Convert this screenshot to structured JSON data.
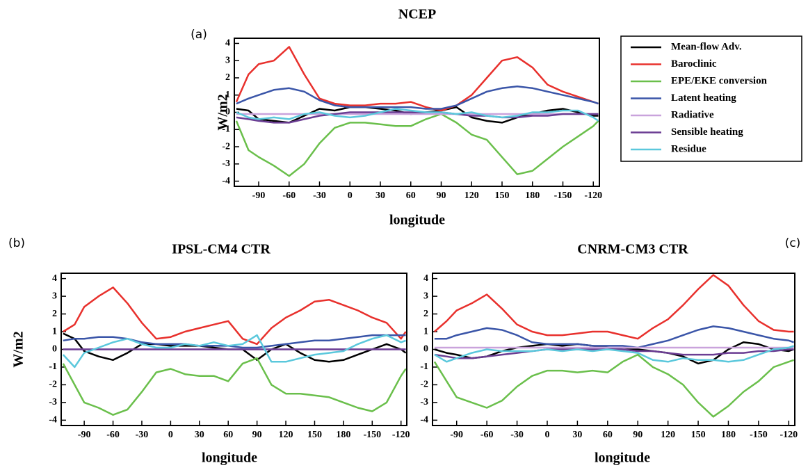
{
  "chart_data": [
    {
      "type": "line",
      "label": "(a)",
      "title": "NCEP",
      "xlabel": "longitude",
      "ylabel": "W/m2",
      "legend": "right",
      "x": [
        -112,
        -100,
        -90,
        -75,
        -60,
        -45,
        -30,
        -15,
        0,
        15,
        30,
        45,
        60,
        75,
        90,
        105,
        120,
        135,
        150,
        165,
        180,
        195,
        210,
        225,
        240,
        245
      ],
      "xlim": [
        -114,
        246
      ],
      "ylim": [
        -4.3,
        4.3
      ],
      "xticks": [
        -90,
        -60,
        -30,
        0,
        30,
        60,
        90,
        120,
        150,
        180,
        {
          "value": 210,
          "label": "-150"
        },
        {
          "value": 240,
          "label": "-120"
        }
      ],
      "yticks": [
        -4,
        -3,
        -2,
        -1,
        0,
        1,
        2,
        3,
        4
      ],
      "series": [
        {
          "name": "Mean-flow Adv.",
          "color": "#000000",
          "values": [
            0.2,
            0.1,
            -0.4,
            -0.5,
            -0.6,
            -0.2,
            0.2,
            0.1,
            0.3,
            0.3,
            0.2,
            0.1,
            -0.1,
            0.0,
            0.1,
            0.3,
            -0.3,
            -0.5,
            -0.6,
            -0.3,
            -0.1,
            0.1,
            0.2,
            0.0,
            -0.2,
            -0.2
          ]
        },
        {
          "name": "Baroclinic",
          "color": "#e8302c",
          "values": [
            0.6,
            2.2,
            2.8,
            3.0,
            3.8,
            2.2,
            0.8,
            0.5,
            0.4,
            0.4,
            0.5,
            0.5,
            0.6,
            0.3,
            0.1,
            0.4,
            1.0,
            2.0,
            3.0,
            3.2,
            2.6,
            1.6,
            1.2,
            0.9,
            0.6,
            0.5
          ]
        },
        {
          "name": "EPE/EKE conversion",
          "color": "#6abf4b",
          "values": [
            -0.5,
            -2.2,
            -2.6,
            -3.1,
            -3.7,
            -3.0,
            -1.8,
            -0.9,
            -0.6,
            -0.6,
            -0.7,
            -0.8,
            -0.8,
            -0.4,
            -0.1,
            -0.6,
            -1.3,
            -1.6,
            -2.6,
            -3.6,
            -3.4,
            -2.7,
            -2.0,
            -1.4,
            -0.8,
            -0.5
          ]
        },
        {
          "name": "Latent heating",
          "color": "#3a55a8",
          "values": [
            0.5,
            0.8,
            1.0,
            1.3,
            1.4,
            1.2,
            0.7,
            0.4,
            0.3,
            0.3,
            0.3,
            0.3,
            0.3,
            0.2,
            0.2,
            0.4,
            0.8,
            1.2,
            1.4,
            1.5,
            1.4,
            1.2,
            1.0,
            0.8,
            0.6,
            0.5
          ]
        },
        {
          "name": "Radiative",
          "color": "#c9a3dc",
          "values": [
            -0.1,
            -0.1,
            -0.1,
            -0.1,
            -0.1,
            -0.1,
            -0.1,
            -0.1,
            -0.1,
            -0.1,
            -0.1,
            -0.1,
            -0.1,
            -0.1,
            -0.1,
            -0.1,
            -0.1,
            -0.1,
            -0.1,
            -0.1,
            -0.1,
            -0.1,
            -0.1,
            -0.1,
            -0.1,
            -0.1
          ]
        },
        {
          "name": "Sensible heating",
          "color": "#6b3d93",
          "values": [
            -0.3,
            -0.4,
            -0.5,
            -0.6,
            -0.6,
            -0.4,
            -0.2,
            -0.1,
            0.0,
            0.0,
            0.0,
            0.0,
            0.0,
            0.0,
            0.0,
            -0.1,
            -0.2,
            -0.2,
            -0.3,
            -0.3,
            -0.2,
            -0.2,
            -0.1,
            -0.1,
            -0.1,
            -0.1
          ]
        },
        {
          "name": "Residue",
          "color": "#5bc8dc",
          "values": [
            0.0,
            -0.3,
            -0.4,
            -0.3,
            -0.4,
            -0.1,
            0.0,
            -0.2,
            -0.3,
            -0.2,
            0.0,
            0.2,
            0.1,
            0.0,
            0.0,
            -0.1,
            0.0,
            -0.2,
            -0.3,
            -0.2,
            0.0,
            0.0,
            0.1,
            0.1,
            -0.3,
            -0.5
          ]
        }
      ]
    },
    {
      "type": "line",
      "label": "(b)",
      "title": "IPSL-CM4    CTR",
      "xlabel": "longitude",
      "ylabel": "W/m2",
      "legend": "none",
      "x": [
        -112,
        -100,
        -90,
        -75,
        -60,
        -45,
        -30,
        -15,
        0,
        15,
        30,
        45,
        60,
        75,
        90,
        105,
        120,
        135,
        150,
        165,
        180,
        195,
        210,
        225,
        240,
        245
      ],
      "xlim": [
        -114,
        246
      ],
      "ylim": [
        -4.3,
        4.3
      ],
      "xticks": [
        -90,
        -60,
        -30,
        0,
        30,
        60,
        90,
        120,
        150,
        180,
        {
          "value": 210,
          "label": "-150"
        },
        {
          "value": 240,
          "label": "-120"
        }
      ],
      "yticks": [
        -4,
        -3,
        -2,
        -1,
        0,
        1,
        2,
        3,
        4
      ],
      "series": [
        {
          "color": "#000000",
          "values": [
            0.9,
            0.6,
            -0.1,
            -0.4,
            -0.6,
            -0.2,
            0.3,
            0.3,
            0.2,
            0.2,
            0.2,
            0.1,
            0.0,
            0.0,
            -0.6,
            0.0,
            0.3,
            -0.2,
            -0.6,
            -0.7,
            -0.6,
            -0.3,
            0.0,
            0.3,
            0.0,
            -0.2
          ]
        },
        {
          "color": "#e8302c",
          "values": [
            1.0,
            1.4,
            2.4,
            3.0,
            3.5,
            2.6,
            1.5,
            0.6,
            0.7,
            1.0,
            1.2,
            1.4,
            1.6,
            0.6,
            0.3,
            1.2,
            1.8,
            2.2,
            2.7,
            2.8,
            2.5,
            2.2,
            1.8,
            1.5,
            0.6,
            1.0
          ]
        },
        {
          "color": "#6abf4b",
          "values": [
            -0.8,
            -2.0,
            -3.0,
            -3.3,
            -3.7,
            -3.4,
            -2.4,
            -1.3,
            -1.1,
            -1.4,
            -1.5,
            -1.5,
            -1.8,
            -0.8,
            -0.5,
            -2.0,
            -2.5,
            -2.5,
            -2.6,
            -2.7,
            -3.0,
            -3.3,
            -3.5,
            -3.0,
            -1.5,
            -1.1
          ]
        },
        {
          "color": "#3a55a8",
          "values": [
            0.5,
            0.6,
            0.6,
            0.7,
            0.7,
            0.6,
            0.4,
            0.3,
            0.3,
            0.3,
            0.2,
            0.2,
            0.2,
            0.1,
            0.1,
            0.2,
            0.3,
            0.4,
            0.5,
            0.5,
            0.6,
            0.7,
            0.8,
            0.8,
            0.8,
            0.8
          ]
        },
        {
          "color": "#c9a3dc",
          "values": [
            0.0,
            0.0,
            0.0,
            0.0,
            0.0,
            0.0,
            0.0,
            0.0,
            0.0,
            0.0,
            0.0,
            0.0,
            0.0,
            0.0,
            0.0,
            0.0,
            0.0,
            0.0,
            0.0,
            0.0,
            0.0,
            0.0,
            0.0,
            0.0,
            0.0,
            0.0
          ]
        },
        {
          "color": "#6b3d93",
          "values": [
            0.0,
            0.0,
            0.0,
            0.0,
            0.0,
            0.0,
            0.0,
            0.0,
            0.0,
            0.0,
            0.0,
            0.0,
            0.0,
            0.0,
            0.0,
            0.0,
            0.0,
            0.0,
            0.0,
            0.0,
            0.0,
            0.0,
            0.0,
            0.0,
            0.0,
            0.0
          ]
        },
        {
          "color": "#5bc8dc",
          "values": [
            -0.3,
            -1.0,
            -0.2,
            0.1,
            0.4,
            0.6,
            0.3,
            0.1,
            0.1,
            0.3,
            0.2,
            0.4,
            0.2,
            0.3,
            0.8,
            -0.7,
            -0.7,
            -0.5,
            -0.3,
            -0.2,
            -0.1,
            0.3,
            0.6,
            0.8,
            0.4,
            0.5
          ]
        }
      ]
    },
    {
      "type": "line",
      "label": "(c)",
      "title": "CNRM-CM3    CTR",
      "xlabel": "longitude",
      "legend": "none",
      "x": [
        -112,
        -100,
        -90,
        -75,
        -60,
        -45,
        -30,
        -15,
        0,
        15,
        30,
        45,
        60,
        75,
        90,
        105,
        120,
        135,
        150,
        165,
        180,
        195,
        210,
        225,
        240,
        245
      ],
      "xlim": [
        -114,
        246
      ],
      "ylim": [
        -4.3,
        4.3
      ],
      "xticks": [
        -90,
        -60,
        -30,
        0,
        30,
        60,
        90,
        120,
        150,
        180,
        {
          "value": 210,
          "label": "-150"
        },
        {
          "value": 240,
          "label": "-120"
        }
      ],
      "yticks": [
        -4,
        -3,
        -2,
        -1,
        0,
        1,
        2,
        3,
        4
      ],
      "series": [
        {
          "color": "#000000",
          "values": [
            0.0,
            -0.2,
            -0.3,
            -0.5,
            -0.4,
            -0.1,
            0.1,
            0.2,
            0.3,
            0.2,
            0.3,
            0.2,
            0.1,
            0.0,
            0.0,
            -0.1,
            -0.2,
            -0.4,
            -0.8,
            -0.6,
            0.0,
            0.4,
            0.3,
            0.0,
            -0.1,
            0.0
          ]
        },
        {
          "color": "#e8302c",
          "values": [
            1.0,
            1.6,
            2.2,
            2.6,
            3.1,
            2.3,
            1.4,
            1.0,
            0.8,
            0.8,
            0.9,
            1.0,
            1.0,
            0.8,
            0.6,
            1.2,
            1.7,
            2.5,
            3.4,
            4.2,
            3.6,
            2.5,
            1.6,
            1.1,
            1.0,
            1.0
          ]
        },
        {
          "color": "#6abf4b",
          "values": [
            -0.7,
            -1.8,
            -2.7,
            -3.0,
            -3.3,
            -2.9,
            -2.1,
            -1.5,
            -1.2,
            -1.2,
            -1.3,
            -1.2,
            -1.3,
            -0.7,
            -0.3,
            -1.0,
            -1.4,
            -2.0,
            -3.0,
            -3.8,
            -3.2,
            -2.4,
            -1.8,
            -1.0,
            -0.7,
            -0.6
          ]
        },
        {
          "color": "#3a55a8",
          "values": [
            0.6,
            0.6,
            0.8,
            1.0,
            1.2,
            1.1,
            0.8,
            0.4,
            0.3,
            0.3,
            0.3,
            0.2,
            0.2,
            0.2,
            0.1,
            0.3,
            0.5,
            0.8,
            1.1,
            1.3,
            1.2,
            1.0,
            0.8,
            0.6,
            0.5,
            0.4
          ]
        },
        {
          "color": "#c9a3dc",
          "values": [
            0.1,
            0.1,
            0.1,
            0.1,
            0.1,
            0.1,
            0.1,
            0.1,
            0.1,
            0.1,
            0.1,
            0.1,
            0.1,
            0.1,
            0.1,
            0.1,
            0.1,
            0.1,
            0.1,
            0.1,
            0.1,
            0.1,
            0.1,
            0.1,
            0.1,
            0.1
          ]
        },
        {
          "color": "#6b3d93",
          "values": [
            -0.3,
            -0.4,
            -0.5,
            -0.5,
            -0.4,
            -0.3,
            -0.2,
            -0.1,
            0.0,
            0.0,
            0.0,
            0.0,
            0.0,
            0.0,
            -0.1,
            -0.1,
            -0.2,
            -0.3,
            -0.3,
            -0.3,
            -0.2,
            -0.2,
            -0.1,
            -0.1,
            0.0,
            0.0
          ]
        },
        {
          "color": "#5bc8dc",
          "values": [
            -0.3,
            -0.7,
            -0.5,
            -0.2,
            0.0,
            -0.1,
            -0.1,
            -0.1,
            0.0,
            -0.1,
            0.0,
            -0.1,
            0.0,
            -0.1,
            -0.2,
            -0.6,
            -0.7,
            -0.5,
            -0.6,
            -0.6,
            -0.7,
            -0.6,
            -0.3,
            0.0,
            0.1,
            0.2
          ]
        }
      ]
    }
  ]
}
